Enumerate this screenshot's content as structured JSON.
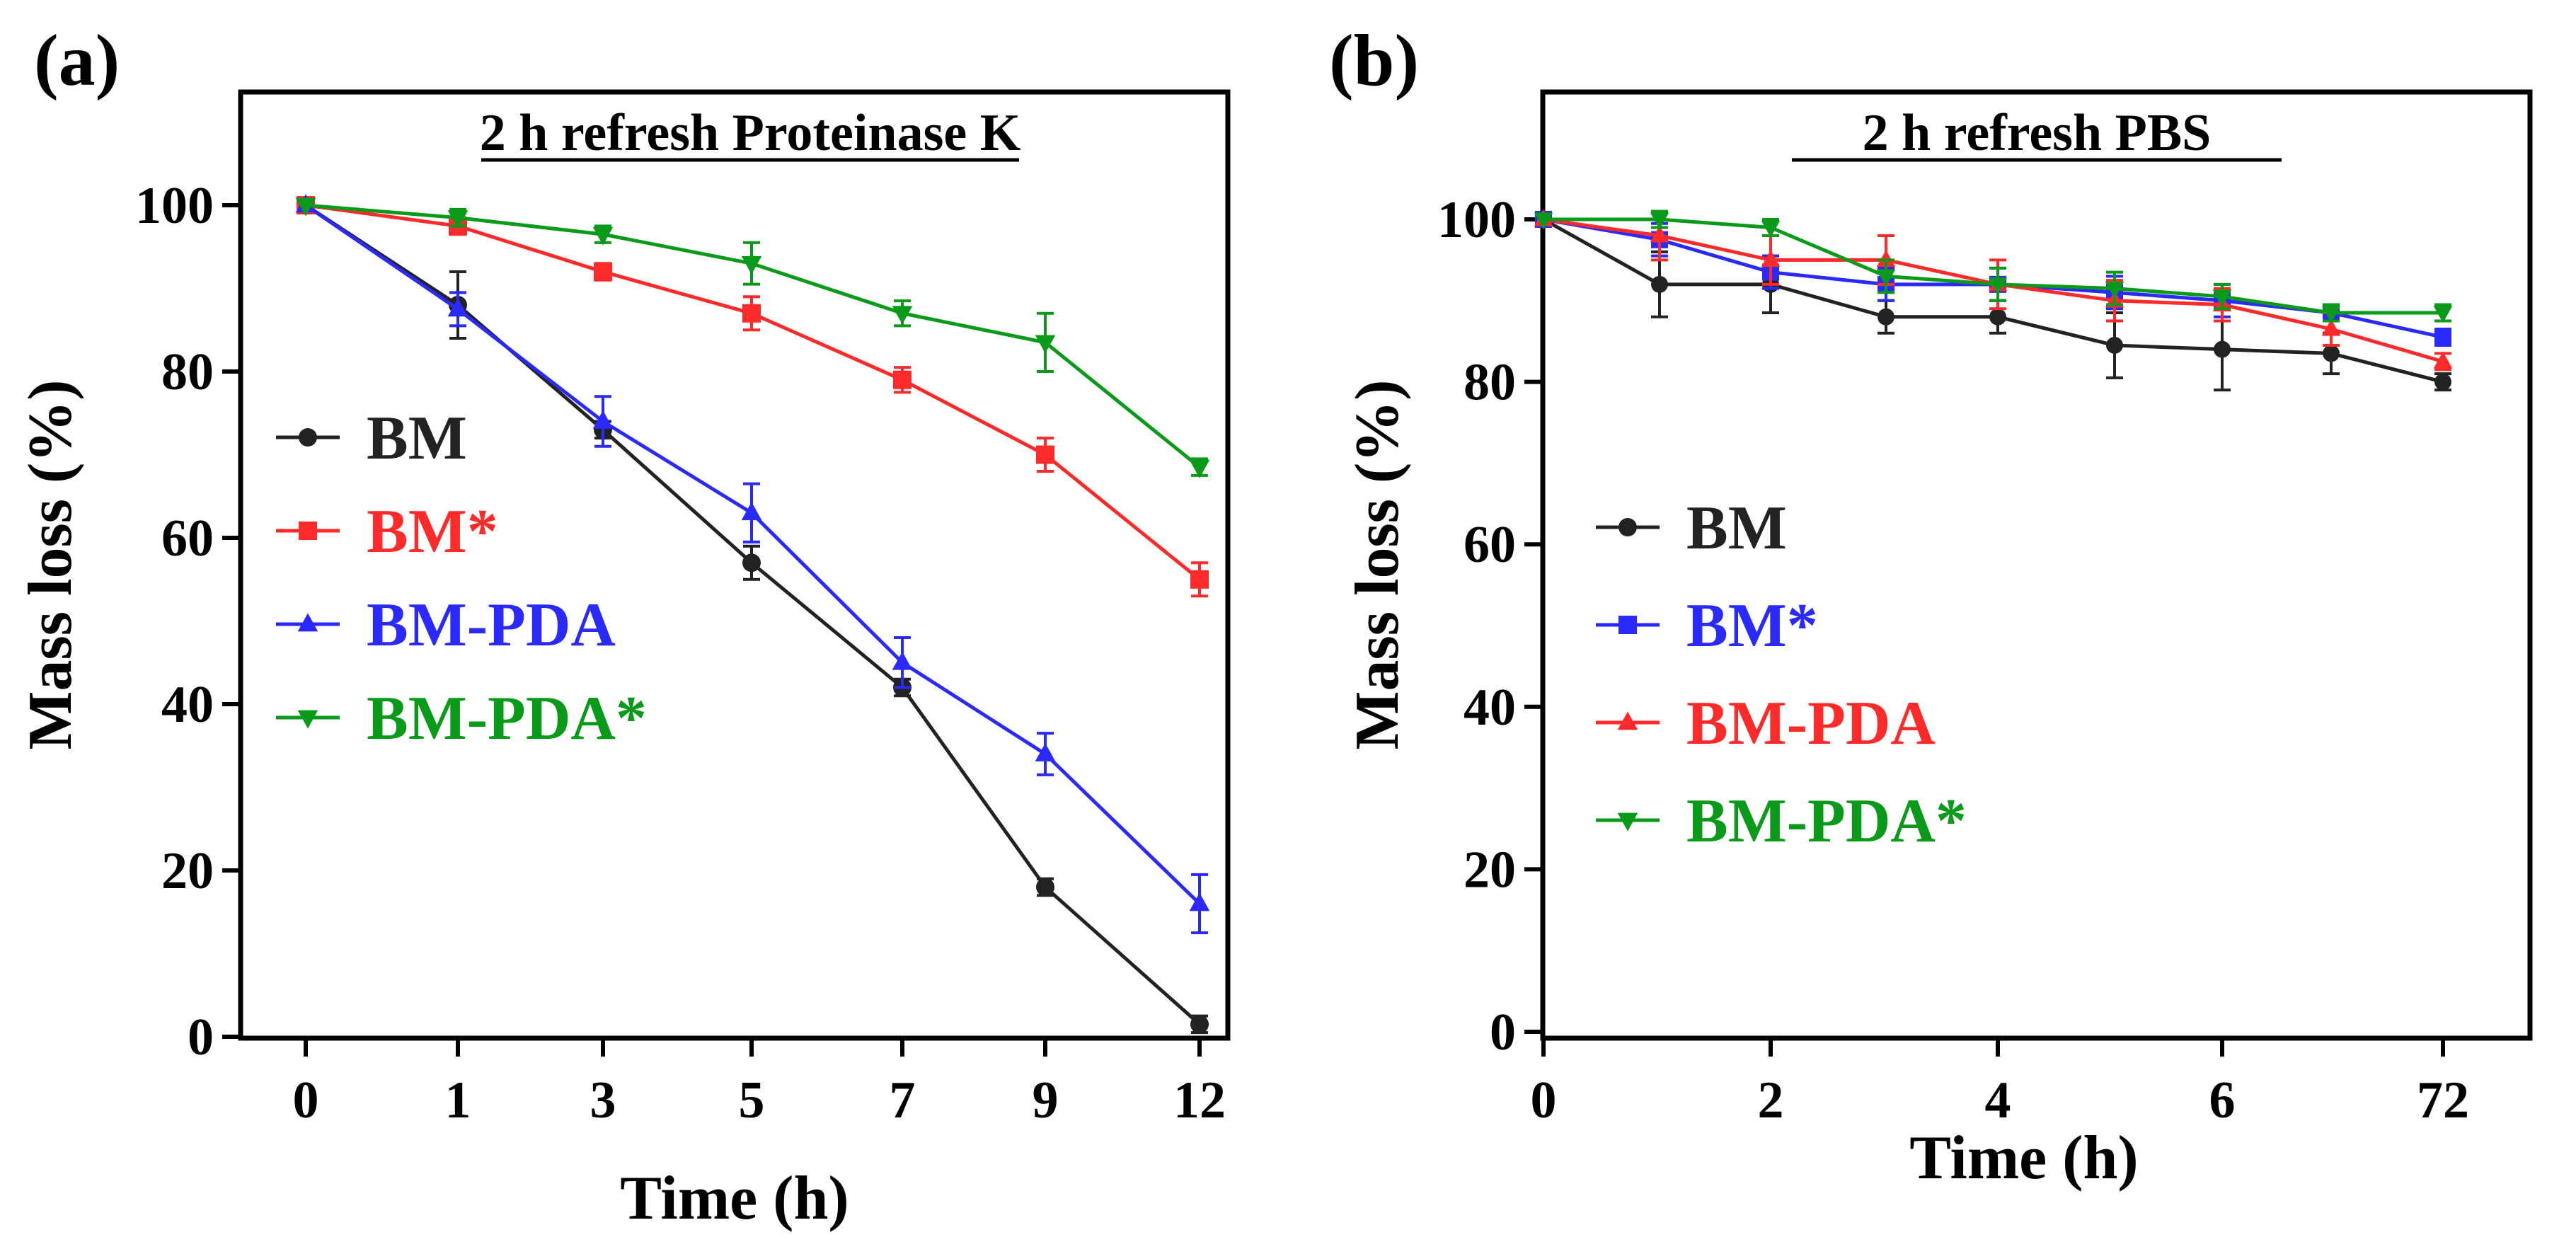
{
  "colors": {
    "black": "#222222",
    "red": "#ff2a2a",
    "blue": "#2a2aff",
    "green": "#0a9a1a"
  },
  "chart_data": [
    {
      "panel_label": "(a)",
      "type": "line",
      "title": "2 h refresh Proteinase K",
      "xlabel": "Time (h)",
      "ylabel": "Mass loss (%)",
      "categories": [
        "0",
        "1",
        "3",
        "5",
        "7",
        "9",
        "12"
      ],
      "ylim": [
        0,
        100
      ],
      "yticks": [
        "0",
        "20",
        "40",
        "60",
        "80",
        "100"
      ],
      "legend_position": "left",
      "series": [
        {
          "name": "BM",
          "color": "#222222",
          "marker": "circle",
          "values": [
            100,
            88,
            73,
            57,
            42,
            18,
            1.5
          ],
          "errors": [
            0,
            4,
            1,
            2,
            1,
            1,
            1
          ]
        },
        {
          "name": "BM*",
          "color": "#ff2a2a",
          "marker": "square",
          "values": [
            100,
            97.5,
            92,
            87,
            79,
            70,
            55
          ],
          "errors": [
            0,
            1,
            1,
            2,
            1.5,
            2,
            2
          ]
        },
        {
          "name": "BM-PDA",
          "color": "#2a2aff",
          "marker": "triangle-up",
          "values": [
            100,
            87.5,
            74,
            63,
            45,
            34,
            16
          ],
          "errors": [
            0,
            2,
            3,
            3.5,
            3,
            2.5,
            3.5
          ]
        },
        {
          "name": "BM-PDA*",
          "color": "#0a9a1a",
          "marker": "triangle-down",
          "values": [
            100,
            98.5,
            96.5,
            93,
            87,
            83.5,
            68.5
          ],
          "errors": [
            0,
            1,
            1,
            2.5,
            1.5,
            3.5,
            1
          ]
        }
      ]
    },
    {
      "panel_label": "(b)",
      "type": "line",
      "title": "2 h refresh PBS",
      "xlabel": "Time (h)",
      "ylabel": "Mass loss (%)",
      "categories": [
        "0",
        "1",
        "2",
        "3",
        "4",
        "5",
        "6",
        "7",
        "72"
      ],
      "xticks": [
        "0",
        "2",
        "4",
        "6",
        "72"
      ],
      "ylim": [
        0,
        100
      ],
      "yticks": [
        "0",
        "20",
        "40",
        "60",
        "80",
        "100"
      ],
      "legend_position": "left",
      "series": [
        {
          "name": "BM",
          "color": "#222222",
          "marker": "circle",
          "values": [
            100,
            92,
            92,
            88,
            88,
            84.5,
            84,
            83.5,
            80
          ],
          "errors": [
            0,
            4,
            3.5,
            2,
            2,
            4,
            5,
            2.5,
            1
          ]
        },
        {
          "name": "BM*",
          "color": "#2a2aff",
          "marker": "square",
          "values": [
            100,
            97.5,
            93.5,
            92,
            92,
            91,
            90,
            88.5,
            85.5
          ],
          "errors": [
            0,
            2,
            2,
            2,
            2,
            2,
            2,
            1,
            1
          ]
        },
        {
          "name": "BM-PDA",
          "color": "#ff2a2a",
          "marker": "triangle-up",
          "values": [
            100,
            98,
            95,
            95,
            92,
            90,
            89.5,
            86.5,
            82.5
          ],
          "errors": [
            0,
            3,
            3,
            3,
            3,
            2.5,
            2,
            2,
            1
          ]
        },
        {
          "name": "BM-PDA*",
          "color": "#0a9a1a",
          "marker": "triangle-down",
          "values": [
            100,
            100,
            99,
            93,
            92,
            91.5,
            90.5,
            88.5,
            88.5
          ],
          "errors": [
            0,
            1,
            1,
            2,
            2,
            2,
            1.5,
            1,
            1
          ]
        }
      ]
    }
  ]
}
